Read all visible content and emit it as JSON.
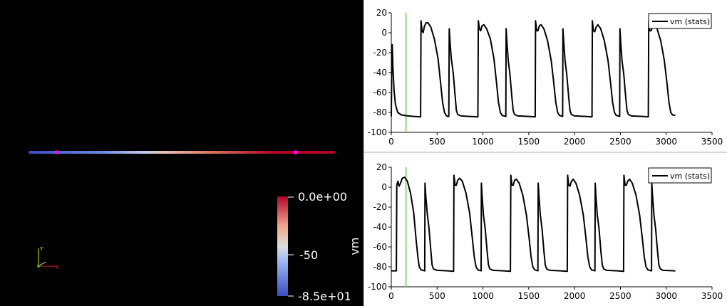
{
  "scene": {
    "colorbar": {
      "title": "vm",
      "max_label": "0.0e+00",
      "mid_label": "-50",
      "min_label": "-8.5e+01",
      "colors": [
        "#3b4cc0",
        "#dddddd",
        "#b40426"
      ]
    },
    "axes_triad": {
      "x": "X",
      "y": "Y"
    },
    "probe_color": "#ff00ff",
    "line_gradient": [
      "#3b4cc0",
      "#6f8ee6",
      "#c9c9e9",
      "#e8c0b0",
      "#d8735c",
      "#b40426",
      "#b40426"
    ]
  },
  "chart_data": [
    {
      "type": "line",
      "legend": "vm (stats)",
      "legend_position": "top-right",
      "xlim": [
        0,
        3500
      ],
      "ylim": [
        -100,
        20
      ],
      "x_ticks": [
        "0",
        "500",
        "1000",
        "1500",
        "2000",
        "2500",
        "3000",
        "3500"
      ],
      "y_ticks": [
        "20",
        "0",
        "-20",
        "-40",
        "-60",
        "-80",
        "-100"
      ],
      "marker_x": 160,
      "marker_color": "#90dd70",
      "series": [
        {
          "name": "vm (stats)",
          "color": "#000000",
          "points": [
            [
              0,
              -84
            ],
            [
              5,
              -38
            ],
            [
              10,
              -12
            ],
            [
              18,
              -35
            ],
            [
              30,
              -58
            ],
            [
              45,
              -72
            ],
            [
              70,
              -80
            ],
            [
              110,
              -82.5
            ],
            [
              180,
              -83.5
            ],
            [
              250,
              -84
            ],
            [
              320,
              -84.5
            ],
            [
              324,
              12
            ],
            [
              335,
              2
            ],
            [
              348,
              0
            ],
            [
              360,
              6
            ],
            [
              380,
              10
            ],
            [
              400,
              10
            ],
            [
              430,
              6
            ],
            [
              470,
              -6
            ],
            [
              510,
              -26
            ],
            [
              540,
              -52
            ],
            [
              560,
              -70
            ],
            [
              580,
              -80
            ],
            [
              600,
              -83
            ],
            [
              612,
              -84
            ],
            [
              628,
              -84
            ],
            [
              632,
              4
            ],
            [
              640,
              -8
            ],
            [
              655,
              -26
            ],
            [
              675,
              -40
            ],
            [
              695,
              -62
            ],
            [
              710,
              -78
            ],
            [
              725,
              -82
            ],
            [
              760,
              -83.5
            ],
            [
              850,
              -84
            ],
            [
              945,
              -84.5
            ],
            [
              950,
              12
            ],
            [
              962,
              4
            ],
            [
              975,
              2
            ],
            [
              990,
              7
            ],
            [
              1010,
              8
            ],
            [
              1040,
              4
            ],
            [
              1080,
              -6
            ],
            [
              1120,
              -26
            ],
            [
              1150,
              -52
            ],
            [
              1170,
              -70
            ],
            [
              1190,
              -80
            ],
            [
              1210,
              -83
            ],
            [
              1250,
              -84
            ],
            [
              1253,
              4
            ],
            [
              1262,
              -10
            ],
            [
              1276,
              -28
            ],
            [
              1295,
              -42
            ],
            [
              1315,
              -64
            ],
            [
              1330,
              -78
            ],
            [
              1345,
              -82
            ],
            [
              1380,
              -83.5
            ],
            [
              1500,
              -84
            ],
            [
              1570,
              -84.5
            ],
            [
              1574,
              12
            ],
            [
              1586,
              2
            ],
            [
              1600,
              2
            ],
            [
              1616,
              7
            ],
            [
              1635,
              8
            ],
            [
              1665,
              4
            ],
            [
              1705,
              -8
            ],
            [
              1745,
              -28
            ],
            [
              1775,
              -52
            ],
            [
              1795,
              -70
            ],
            [
              1815,
              -80
            ],
            [
              1835,
              -83
            ],
            [
              1870,
              -84
            ],
            [
              1873,
              4
            ],
            [
              1882,
              -10
            ],
            [
              1896,
              -28
            ],
            [
              1915,
              -42
            ],
            [
              1935,
              -64
            ],
            [
              1950,
              -78
            ],
            [
              1965,
              -82
            ],
            [
              2000,
              -83.5
            ],
            [
              2120,
              -84
            ],
            [
              2190,
              -84.5
            ],
            [
              2194,
              12
            ],
            [
              2206,
              2
            ],
            [
              2220,
              1
            ],
            [
              2236,
              6
            ],
            [
              2255,
              8
            ],
            [
              2285,
              4
            ],
            [
              2325,
              -8
            ],
            [
              2365,
              -28
            ],
            [
              2395,
              -52
            ],
            [
              2415,
              -70
            ],
            [
              2435,
              -80
            ],
            [
              2455,
              -83
            ],
            [
              2492,
              -84
            ],
            [
              2495,
              4
            ],
            [
              2504,
              -10
            ],
            [
              2518,
              -28
            ],
            [
              2537,
              -42
            ],
            [
              2557,
              -64
            ],
            [
              2572,
              -78
            ],
            [
              2587,
              -82
            ],
            [
              2620,
              -83.5
            ],
            [
              2740,
              -84
            ],
            [
              2805,
              -84.5
            ],
            [
              2809,
              12
            ],
            [
              2821,
              2
            ],
            [
              2835,
              2
            ],
            [
              2851,
              6
            ],
            [
              2870,
              8
            ],
            [
              2900,
              4
            ],
            [
              2940,
              -8
            ],
            [
              2980,
              -28
            ],
            [
              3010,
              -52
            ],
            [
              3030,
              -70
            ],
            [
              3050,
              -80
            ],
            [
              3070,
              -82.5
            ],
            [
              3100,
              -83
            ]
          ]
        }
      ]
    },
    {
      "type": "line",
      "legend": "vm (stats)",
      "legend_position": "top-right",
      "xlim": [
        0,
        3500
      ],
      "ylim": [
        -100,
        20
      ],
      "x_ticks": [
        "0",
        "500",
        "1000",
        "1500",
        "2000",
        "2500",
        "3000",
        "3500"
      ],
      "y_ticks": [
        "20",
        "0",
        "-20",
        "-40",
        "-60",
        "-80",
        "-100"
      ],
      "marker_x": 160,
      "marker_color": "#90dd70",
      "series": [
        {
          "name": "vm (stats)",
          "color": "#000000",
          "points": [
            [
              0,
              -84
            ],
            [
              55,
              -84
            ],
            [
              60,
              2
            ],
            [
              72,
              6
            ],
            [
              85,
              1
            ],
            [
              100,
              4
            ],
            [
              120,
              9
            ],
            [
              145,
              10
            ],
            [
              175,
              6
            ],
            [
              210,
              -6
            ],
            [
              245,
              -26
            ],
            [
              270,
              -52
            ],
            [
              290,
              -70
            ],
            [
              305,
              -80
            ],
            [
              325,
              -83
            ],
            [
              365,
              -84
            ],
            [
              368,
              4
            ],
            [
              377,
              -10
            ],
            [
              392,
              -26
            ],
            [
              410,
              -40
            ],
            [
              430,
              -62
            ],
            [
              445,
              -78
            ],
            [
              460,
              -82
            ],
            [
              500,
              -83.5
            ],
            [
              620,
              -84
            ],
            [
              680,
              -84.5
            ],
            [
              684,
              12
            ],
            [
              696,
              2
            ],
            [
              710,
              2
            ],
            [
              725,
              7
            ],
            [
              745,
              9
            ],
            [
              775,
              6
            ],
            [
              815,
              -6
            ],
            [
              855,
              -26
            ],
            [
              885,
              -52
            ],
            [
              905,
              -70
            ],
            [
              925,
              -80
            ],
            [
              945,
              -83
            ],
            [
              980,
              -84
            ],
            [
              983,
              4
            ],
            [
              992,
              -10
            ],
            [
              1006,
              -28
            ],
            [
              1025,
              -42
            ],
            [
              1045,
              -64
            ],
            [
              1060,
              -78
            ],
            [
              1075,
              -82
            ],
            [
              1110,
              -83.5
            ],
            [
              1230,
              -84
            ],
            [
              1300,
              -84.5
            ],
            [
              1304,
              12
            ],
            [
              1316,
              2
            ],
            [
              1330,
              2
            ],
            [
              1346,
              7
            ],
            [
              1365,
              8
            ],
            [
              1395,
              4
            ],
            [
              1435,
              -8
            ],
            [
              1475,
              -28
            ],
            [
              1505,
              -52
            ],
            [
              1525,
              -70
            ],
            [
              1545,
              -80
            ],
            [
              1565,
              -83
            ],
            [
              1600,
              -84
            ],
            [
              1603,
              4
            ],
            [
              1612,
              -10
            ],
            [
              1626,
              -28
            ],
            [
              1645,
              -42
            ],
            [
              1665,
              -64
            ],
            [
              1680,
              -78
            ],
            [
              1695,
              -82
            ],
            [
              1730,
              -83.5
            ],
            [
              1850,
              -84
            ],
            [
              1920,
              -84.5
            ],
            [
              1924,
              12
            ],
            [
              1936,
              2
            ],
            [
              1950,
              1
            ],
            [
              1966,
              6
            ],
            [
              1985,
              8
            ],
            [
              2015,
              4
            ],
            [
              2055,
              -8
            ],
            [
              2095,
              -28
            ],
            [
              2125,
              -52
            ],
            [
              2145,
              -70
            ],
            [
              2165,
              -80
            ],
            [
              2185,
              -83
            ],
            [
              2222,
              -84
            ],
            [
              2225,
              4
            ],
            [
              2234,
              -10
            ],
            [
              2248,
              -28
            ],
            [
              2267,
              -42
            ],
            [
              2287,
              -64
            ],
            [
              2302,
              -78
            ],
            [
              2317,
              -82
            ],
            [
              2350,
              -83.5
            ],
            [
              2470,
              -84
            ],
            [
              2535,
              -84.5
            ],
            [
              2539,
              12
            ],
            [
              2551,
              2
            ],
            [
              2565,
              2
            ],
            [
              2581,
              6
            ],
            [
              2600,
              8
            ],
            [
              2630,
              4
            ],
            [
              2670,
              -8
            ],
            [
              2710,
              -28
            ],
            [
              2740,
              -52
            ],
            [
              2760,
              -70
            ],
            [
              2780,
              -80
            ],
            [
              2800,
              -83
            ],
            [
              2840,
              -84
            ],
            [
              2843,
              4
            ],
            [
              2852,
              -10
            ],
            [
              2866,
              -28
            ],
            [
              2885,
              -42
            ],
            [
              2905,
              -64
            ],
            [
              2920,
              -78
            ],
            [
              2935,
              -82
            ],
            [
              2965,
              -83.5
            ],
            [
              3100,
              -84
            ]
          ]
        }
      ]
    }
  ]
}
